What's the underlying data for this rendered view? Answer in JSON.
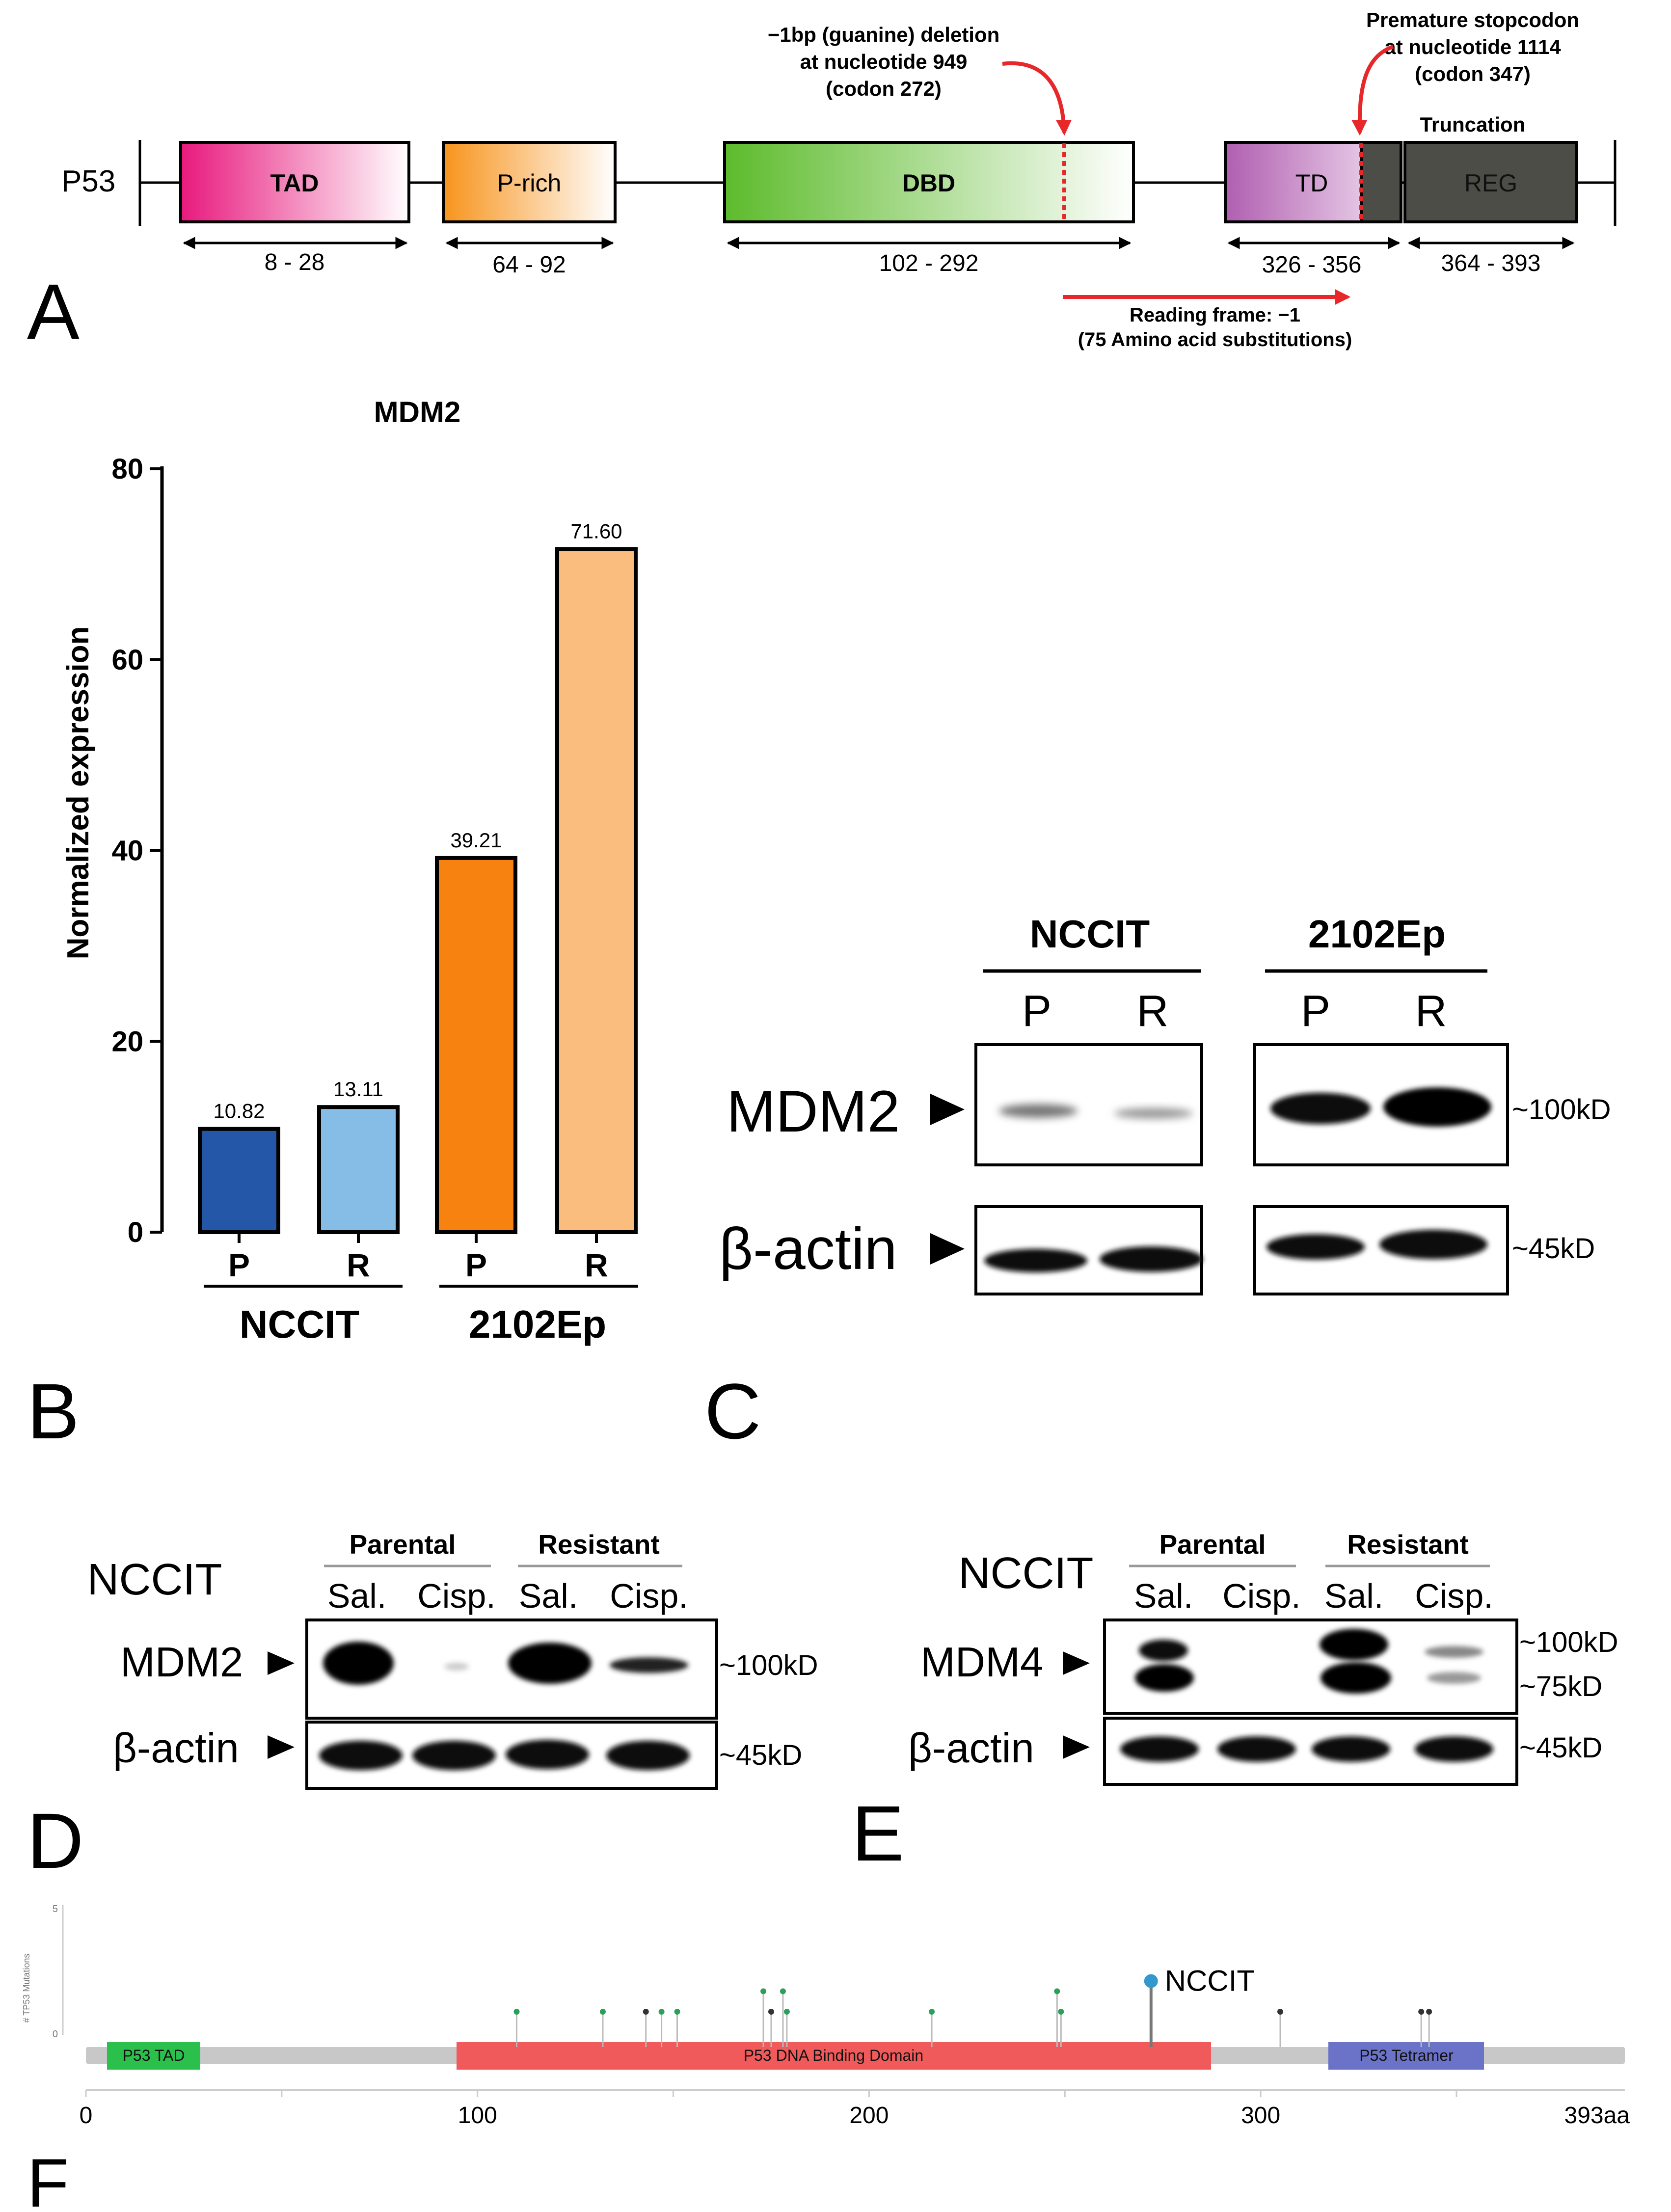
{
  "panelA": {
    "letter": "A",
    "protein": "P53",
    "domains": [
      {
        "name": "TAD",
        "range": "8 - 28"
      },
      {
        "name": "P-rich",
        "range": "64 - 92"
      },
      {
        "name": "DBD",
        "range": "102 - 292"
      },
      {
        "name": "TD",
        "range": "326 - 356"
      },
      {
        "name": "REG",
        "range": "364 - 393"
      }
    ],
    "deletion_note": [
      "−1bp (guanine) deletion",
      "at nucleotide 949",
      "(codon 272)"
    ],
    "stop_note": [
      "Premature stopcodon",
      "at nucleotide 1114",
      "(codon 347)"
    ],
    "truncation": "Truncation",
    "reading_frame": [
      "Reading frame: −1",
      "(75 Amino acid substitutions)"
    ],
    "colors": {
      "TAD": "#e8197d",
      "P-rich": "#f7941d",
      "DBD": "#5dbb2c",
      "TD": "#b05fb0",
      "REG": "#4d4d48",
      "arrow": "#e8272a"
    }
  },
  "panelB": {
    "letter": "B",
    "groups": [
      "NCCIT",
      "2102Ep"
    ],
    "chart_data": {
      "type": "bar",
      "title": "MDM2",
      "ylabel": "Normalized expression",
      "xlabel": "",
      "categories": [
        "P",
        "R",
        "P",
        "R"
      ],
      "groups": [
        "NCCIT",
        "NCCIT",
        "2102Ep",
        "2102Ep"
      ],
      "values": [
        10.82,
        13.11,
        39.21,
        71.6
      ],
      "value_labels": [
        "10.82",
        "13.11",
        "39.21",
        "71.60"
      ],
      "ylim": [
        0,
        80
      ],
      "yticks": [
        0,
        20,
        40,
        60,
        80
      ],
      "colors": [
        "#2457a8",
        "#86bde6",
        "#f7820f",
        "#fbbd7d"
      ],
      "grid": false
    }
  },
  "panelC": {
    "letter": "C",
    "groups": [
      "NCCIT",
      "2102Ep"
    ],
    "lanes": [
      "P",
      "R",
      "P",
      "R"
    ],
    "rows": [
      {
        "label": "MDM2",
        "size": "~100kD"
      },
      {
        "label": "β-actin",
        "size": "~45kD"
      }
    ]
  },
  "panelD": {
    "letter": "D",
    "cell": "NCCIT",
    "conditions": [
      "Parental",
      "Resistant"
    ],
    "lanes": [
      "Sal.",
      "Cisp.",
      "Sal.",
      "Cisp."
    ],
    "rows": [
      {
        "label": "MDM2",
        "size": "~100kD"
      },
      {
        "label": "β-actin",
        "size": "~45kD"
      }
    ]
  },
  "panelE": {
    "letter": "E",
    "cell": "NCCIT",
    "conditions": [
      "Parental",
      "Resistant"
    ],
    "lanes": [
      "Sal.",
      "Cisp.",
      "Sal.",
      "Cisp."
    ],
    "rows": [
      {
        "label": "MDM4",
        "sizes": [
          "~100kD",
          "~75kD"
        ]
      },
      {
        "label": "β-actin",
        "size": "~45kD"
      }
    ]
  },
  "panelF": {
    "letter": "F",
    "ylabel": "# TP53 Mutations",
    "yticks": [
      "5",
      "0"
    ],
    "domains": [
      "P53 TAD",
      "P53 DNA Binding Domain",
      "P53 Tetramer"
    ],
    "domain_colors": [
      "#2bbf4b",
      "#f05a5a",
      "#6b73c9"
    ],
    "xticks": [
      "0",
      "100",
      "200",
      "300",
      "393aa"
    ],
    "highlight": "NCCIT",
    "chart_data": {
      "type": "scatter",
      "xlim": [
        0,
        393
      ],
      "ylim": [
        0,
        5
      ],
      "mutations": [
        {
          "pos": 110,
          "count": 1,
          "color": "#2ca05a"
        },
        {
          "pos": 132,
          "count": 1,
          "color": "#2ca05a"
        },
        {
          "pos": 143,
          "count": 1,
          "color": "#333333"
        },
        {
          "pos": 147,
          "count": 1,
          "color": "#2ca05a"
        },
        {
          "pos": 151,
          "count": 1,
          "color": "#2ca05a"
        },
        {
          "pos": 173,
          "count": 1.8,
          "color": "#2ca05a"
        },
        {
          "pos": 175,
          "count": 1,
          "color": "#333333"
        },
        {
          "pos": 178,
          "count": 1.8,
          "color": "#2ca05a"
        },
        {
          "pos": 179,
          "count": 1,
          "color": "#2ca05a"
        },
        {
          "pos": 216,
          "count": 1,
          "color": "#2ca05a"
        },
        {
          "pos": 248,
          "count": 1.8,
          "color": "#2ca05a"
        },
        {
          "pos": 249,
          "count": 1,
          "color": "#2ca05a"
        },
        {
          "pos": 272,
          "count": 2.2,
          "color": "#3399cc",
          "label": "NCCIT"
        },
        {
          "pos": 305,
          "count": 1,
          "color": "#333333"
        },
        {
          "pos": 341,
          "count": 1,
          "color": "#333333"
        },
        {
          "pos": 343,
          "count": 1,
          "color": "#333333"
        }
      ]
    }
  }
}
